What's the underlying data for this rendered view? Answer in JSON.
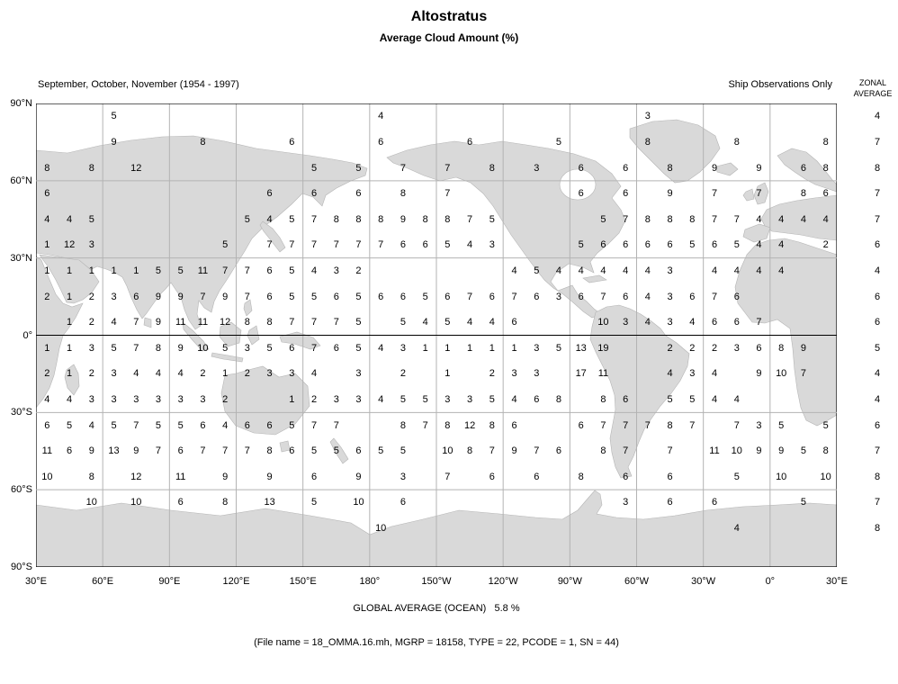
{
  "title": "Altostratus",
  "subtitle": "Average Cloud Amount (%)",
  "header": {
    "left": "September, October, November (1954 - 1997)",
    "right": "Ship Observations Only",
    "zonal_line1": "ZONAL",
    "zonal_line2": "AVERAGE"
  },
  "footer": {
    "global_average": "GLOBAL AVERAGE (OCEAN)   5.8 %",
    "file_info": "(File name = 18_OMMA.16.mh, MGRP = 18158, TYPE = 22, PCODE = 1, SN = 44)"
  },
  "chart_data": {
    "type": "heatmap",
    "title": "Altostratus",
    "subtitle": "Average Cloud Amount (%)",
    "season": "September, October, November (1954 - 1997)",
    "data_source": "Ship Observations Only",
    "global_average_ocean_percent": 5.8,
    "cell_size_deg": 10,
    "lon_start_deg": "30E (map wraps 360° eastward)",
    "lat_ticks": [
      "90°N",
      "60°N",
      "30°N",
      "0°",
      "30°S",
      "60°S",
      "90°S"
    ],
    "lon_ticks": [
      "30°E",
      "60°E",
      "90°E",
      "120°E",
      "150°E",
      "180°",
      "150°W",
      "120°W",
      "90°W",
      "60°W",
      "30°W",
      "0°",
      "30°E"
    ],
    "rows": [
      {
        "band": "80N-90N",
        "zonal_average": 4,
        "cells": {
          "3": 5,
          "15": 4,
          "27": 3
        }
      },
      {
        "band": "70N-80N",
        "zonal_average": 7,
        "cells": {
          "3": 9,
          "7": 8,
          "11": 6,
          "15": 6,
          "19": 6,
          "23": 5,
          "27": 8,
          "31": 8,
          "35": 8
        }
      },
      {
        "band": "60N-70N",
        "zonal_average": 8,
        "cells": {
          "0": 8,
          "2": 8,
          "4": 12,
          "12": 5,
          "14": 5,
          "16": 7,
          "18": 7,
          "20": 8,
          "22": 3,
          "24": 6,
          "26": 6,
          "28": 8,
          "30": 9,
          "32": 9,
          "34": 6,
          "35": 8
        }
      },
      {
        "band": "50N-60N",
        "zonal_average": 7,
        "cells": {
          "0": 6,
          "10": 6,
          "12": 6,
          "14": 6,
          "16": 8,
          "18": 7,
          "24": 6,
          "26": 6,
          "28": 9,
          "30": 7,
          "32": 7,
          "34": 8,
          "35": 6
        }
      },
      {
        "band": "40N-50N",
        "zonal_average": 7,
        "cells": {
          "0": 4,
          "1": 4,
          "2": 5,
          "9": 5,
          "10": 4,
          "11": 5,
          "12": 7,
          "13": 8,
          "14": 8,
          "15": 8,
          "16": 9,
          "17": 8,
          "18": 8,
          "19": 7,
          "20": 5,
          "25": 5,
          "26": 7,
          "27": 8,
          "28": 8,
          "29": 8,
          "30": 7,
          "31": 7,
          "32": 4,
          "33": 4,
          "34": 4,
          "35": 4
        }
      },
      {
        "band": "30N-40N",
        "zonal_average": 6,
        "cells": {
          "0": 1,
          "1": 12,
          "2": 3,
          "8": 5,
          "10": 7,
          "11": 7,
          "12": 7,
          "13": 7,
          "14": 7,
          "15": 7,
          "16": 6,
          "17": 6,
          "18": 5,
          "19": 4,
          "20": 3,
          "24": 5,
          "25": 6,
          "26": 6,
          "27": 6,
          "28": 6,
          "29": 5,
          "30": 6,
          "31": 5,
          "32": 4,
          "33": 4,
          "35": 2
        }
      },
      {
        "band": "20N-30N",
        "zonal_average": 4,
        "cells": {
          "0": 1,
          "1": 1,
          "2": 1,
          "3": 1,
          "4": 1,
          "5": 5,
          "6": 5,
          "7": 11,
          "8": 7,
          "9": 7,
          "10": 6,
          "11": 5,
          "12": 4,
          "13": 3,
          "14": 2,
          "21": 4,
          "22": 5,
          "23": 4,
          "24": 4,
          "25": 4,
          "26": 4,
          "27": 4,
          "28": 3,
          "30": 4,
          "31": 4,
          "32": 4,
          "33": 4
        }
      },
      {
        "band": "10N-20N",
        "zonal_average": 6,
        "cells": {
          "0": 2,
          "1": 1,
          "2": 2,
          "3": 3,
          "4": 6,
          "5": 9,
          "6": 9,
          "7": 7,
          "8": 9,
          "9": 7,
          "10": 6,
          "11": 5,
          "12": 5,
          "13": 6,
          "14": 5,
          "15": 6,
          "16": 6,
          "17": 5,
          "18": 6,
          "19": 7,
          "20": 6,
          "21": 7,
          "22": 6,
          "23": 3,
          "24": 6,
          "25": 7,
          "26": 6,
          "27": 4,
          "28": 3,
          "29": 6,
          "30": 7,
          "31": 6
        }
      },
      {
        "band": "0-10N",
        "zonal_average": 6,
        "cells": {
          "1": 1,
          "2": 2,
          "3": 4,
          "4": 7,
          "5": 9,
          "6": 11,
          "7": 11,
          "8": 12,
          "9": 8,
          "10": 8,
          "11": 7,
          "12": 7,
          "13": 7,
          "14": 5,
          "16": 5,
          "17": 4,
          "18": 5,
          "19": 4,
          "20": 4,
          "21": 6,
          "25": 10,
          "26": 3,
          "27": 4,
          "28": 3,
          "29": 4,
          "30": 6,
          "31": 6,
          "32": 7
        }
      },
      {
        "band": "0-10S",
        "zonal_average": 5,
        "cells": {
          "0": 1,
          "1": 1,
          "2": 3,
          "3": 5,
          "4": 7,
          "5": 8,
          "6": 9,
          "7": 10,
          "8": 5,
          "9": 3,
          "10": 5,
          "11": 6,
          "12": 7,
          "13": 6,
          "14": 5,
          "15": 4,
          "16": 3,
          "17": 1,
          "18": 1,
          "19": 1,
          "20": 1,
          "21": 1,
          "22": 3,
          "23": 5,
          "24": 13,
          "25": 19,
          "28": 2,
          "29": 2,
          "30": 2,
          "31": 3,
          "32": 6,
          "33": 8,
          "34": 9
        }
      },
      {
        "band": "10S-20S",
        "zonal_average": 4,
        "cells": {
          "0": 2,
          "1": 1,
          "2": 2,
          "3": 3,
          "4": 4,
          "5": 4,
          "6": 4,
          "7": 2,
          "8": 1,
          "9": 2,
          "10": 3,
          "11": 3,
          "12": 4,
          "14": 3,
          "16": 2,
          "18": 1,
          "20": 2,
          "21": 3,
          "22": 3,
          "24": 17,
          "25": 11,
          "28": 4,
          "29": 3,
          "30": 4,
          "32": 9,
          "33": 10,
          "34": 7
        }
      },
      {
        "band": "20S-30S",
        "zonal_average": 4,
        "cells": {
          "0": 4,
          "1": 4,
          "2": 3,
          "3": 3,
          "4": 3,
          "5": 3,
          "6": 3,
          "7": 3,
          "8": 2,
          "11": 1,
          "12": 2,
          "13": 3,
          "14": 3,
          "15": 4,
          "16": 5,
          "17": 5,
          "18": 3,
          "19": 3,
          "20": 5,
          "21": 4,
          "22": 6,
          "23": 8,
          "25": 8,
          "26": 6,
          "28": 5,
          "29": 5,
          "30": 4,
          "31": 4
        }
      },
      {
        "band": "30S-40S",
        "zonal_average": 6,
        "cells": {
          "0": 6,
          "1": 5,
          "2": 4,
          "3": 5,
          "4": 7,
          "5": 5,
          "6": 5,
          "7": 6,
          "8": 4,
          "9": 6,
          "10": 6,
          "11": 5,
          "12": 7,
          "13": 7,
          "16": 8,
          "17": 7,
          "18": 8,
          "19": 12,
          "20": 8,
          "21": 6,
          "24": 6,
          "25": 7,
          "26": 7,
          "27": 7,
          "28": 8,
          "29": 7,
          "31": 7,
          "32": 3,
          "33": 5,
          "35": 5
        }
      },
      {
        "band": "40S-50S",
        "zonal_average": 7,
        "cells": {
          "0": 11,
          "1": 6,
          "2": 9,
          "3": 13,
          "4": 9,
          "5": 7,
          "6": 6,
          "7": 7,
          "8": 7,
          "9": 7,
          "10": 8,
          "11": 6,
          "12": 5,
          "13": 5,
          "14": 6,
          "15": 5,
          "16": 5,
          "18": 10,
          "19": 8,
          "20": 7,
          "21": 9,
          "22": 7,
          "23": 6,
          "25": 8,
          "26": 7,
          "28": 7,
          "30": 11,
          "31": 10,
          "32": 9,
          "33": 9,
          "34": 5,
          "35": 8
        }
      },
      {
        "band": "50S-60S",
        "zonal_average": 8,
        "cells": {
          "0": 10,
          "2": 8,
          "4": 12,
          "6": 11,
          "8": 9,
          "10": 9,
          "12": 6,
          "14": 9,
          "16": 3,
          "18": 7,
          "20": 6,
          "22": 6,
          "24": 8,
          "26": 6,
          "28": 6,
          "31": 5,
          "33": 10,
          "35": 10
        }
      },
      {
        "band": "60S-70S",
        "zonal_average": 7,
        "cells": {
          "2": 10,
          "4": 10,
          "6": 6,
          "8": 8,
          "10": 13,
          "12": 5,
          "14": 10,
          "16": 6,
          "26": 3,
          "28": 6,
          "30": 6,
          "34": 5
        }
      },
      {
        "band": "70S-80S",
        "zonal_average": 8,
        "cells": {
          "15": 10,
          "31": 4
        }
      },
      {
        "band": "80S-90S",
        "zonal_average": null,
        "cells": {}
      }
    ]
  }
}
